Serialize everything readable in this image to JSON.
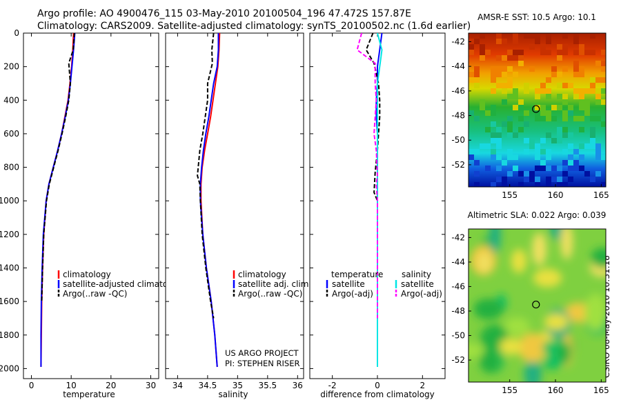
{
  "header": {
    "line1": "Argo profile: AO 4900476_115 03-May-2010 20100504_196 47.472S 157.87E",
    "line2": "Climatology: CARS2009. Satellite-adjusted climatology: synTS_20100502.nc (1.6d earlier)"
  },
  "side_label": "CSIRO 08-May-2010 10:31:18",
  "colors": {
    "climatology": "#ff0000",
    "satellite": "#0000ff",
    "argo": "#000000",
    "sal_satellite": "#00e5e5",
    "sal_argo": "#ff00ff"
  },
  "chart_data": [
    {
      "type": "line",
      "id": "temperature",
      "xlabel": "temperature",
      "ylabel": "",
      "xlim": [
        -2,
        32
      ],
      "ylim": [
        0,
        2060
      ],
      "xticks": [
        "0",
        "10",
        "20",
        "30"
      ],
      "xtick_values": [
        0,
        10,
        20,
        30
      ],
      "yticks": [
        "0",
        "200",
        "400",
        "600",
        "800",
        "1000",
        "1200",
        "1400",
        "1600",
        "1800",
        "2000"
      ],
      "ytick_values": [
        0,
        200,
        400,
        600,
        800,
        1000,
        1200,
        1400,
        1600,
        1800,
        2000
      ],
      "legend": [
        "climatology",
        "satellite-adjusted climatology",
        "Argo(..raw -QC)"
      ],
      "series": [
        {
          "name": "climatology",
          "color": "#ff0000",
          "x": [
            10.6,
            10.4,
            10.1,
            9.7,
            9.2,
            8.4,
            7.6,
            6.6,
            5.5,
            4.4,
            3.7,
            3.1,
            2.8,
            2.6,
            2.5,
            2.4
          ],
          "y": [
            0,
            100,
            200,
            300,
            400,
            500,
            600,
            700,
            800,
            900,
            1000,
            1200,
            1400,
            1600,
            1800,
            1990
          ]
        },
        {
          "name": "satellite-adjusted climatology",
          "color": "#0000ff",
          "x": [
            10.9,
            10.6,
            10.2,
            9.8,
            9.3,
            8.5,
            7.6,
            6.6,
            5.5,
            4.4,
            3.7,
            3.0,
            2.7,
            2.5,
            2.4,
            2.4
          ],
          "y": [
            0,
            100,
            200,
            300,
            400,
            500,
            600,
            700,
            800,
            900,
            1000,
            1200,
            1400,
            1600,
            1800,
            1990
          ]
        },
        {
          "name": "Argo(..raw -QC)",
          "color": "#000000",
          "x": [
            10.8,
            10.5,
            9.4,
            9.8,
            9.4,
            8.6,
            7.7,
            6.7,
            5.6,
            4.5,
            3.8,
            3.1,
            2.8,
            2.6
          ],
          "y": [
            0,
            100,
            180,
            300,
            400,
            500,
            600,
            700,
            800,
            900,
            1000,
            1200,
            1400,
            1600
          ]
        }
      ]
    },
    {
      "type": "line",
      "id": "salinity",
      "xlabel": "salinity",
      "ylabel": "",
      "xlim": [
        33.8,
        36.1
      ],
      "ylim": [
        0,
        2060
      ],
      "xticks": [
        "34",
        "34.5",
        "35",
        "35.5",
        "36"
      ],
      "xtick_values": [
        34,
        34.5,
        35,
        35.5,
        36
      ],
      "legend": [
        "climatology",
        "satellite adj. clim.",
        "Argo(..raw -QC)"
      ],
      "annotation": [
        "US ARGO PROJECT",
        "PI: STEPHEN RISER"
      ],
      "series": [
        {
          "name": "climatology",
          "color": "#ff0000",
          "x": [
            34.7,
            34.69,
            34.67,
            34.63,
            34.59,
            34.55,
            34.5,
            34.45,
            34.41,
            34.39,
            34.39,
            34.42,
            34.48,
            34.56,
            34.62,
            34.66
          ],
          "y": [
            0,
            100,
            200,
            300,
            400,
            500,
            600,
            700,
            800,
            900,
            1000,
            1200,
            1400,
            1600,
            1800,
            1990
          ]
        },
        {
          "name": "satellite adj. clim.",
          "color": "#0000ff",
          "x": [
            34.68,
            34.68,
            34.66,
            34.6,
            34.56,
            34.52,
            34.47,
            34.43,
            34.4,
            34.38,
            34.38,
            34.42,
            34.48,
            34.56,
            34.62,
            34.66
          ],
          "y": [
            0,
            100,
            200,
            300,
            400,
            500,
            600,
            700,
            800,
            900,
            1000,
            1200,
            1400,
            1600,
            1800,
            1990
          ]
        },
        {
          "name": "Argo(..raw -QC)",
          "color": "#000000",
          "x": [
            34.6,
            34.57,
            34.58,
            34.5,
            34.5,
            34.46,
            34.42,
            34.37,
            34.33,
            34.37,
            34.38,
            34.41,
            34.47,
            34.55,
            34.6
          ],
          "y": [
            0,
            100,
            180,
            300,
            400,
            500,
            600,
            700,
            850,
            900,
            1000,
            1200,
            1400,
            1600,
            1700
          ]
        }
      ]
    },
    {
      "type": "line",
      "id": "difference",
      "xlabel": "difference from climatology",
      "ylabel": "",
      "xlim": [
        -3,
        3
      ],
      "ylim": [
        0,
        2060
      ],
      "xticks": [
        "-2",
        "0",
        "2"
      ],
      "xtick_values": [
        -2,
        0,
        2
      ],
      "legend_left_title": "temperature",
      "legend_right_title": "salinity",
      "legend": [
        "satellite",
        "Argo(-adj)",
        "satellite",
        "Argo(-adj)"
      ],
      "series": [
        {
          "name": "temperature satellite",
          "color": "#0000ff",
          "x": [
            0.2,
            0.1,
            0.0,
            0.0,
            -0.05,
            -0.05,
            0.0,
            0.0,
            0.0,
            0.0,
            0.0,
            0.0,
            0.0,
            0.0,
            0.0,
            0.0
          ],
          "y": [
            0,
            100,
            200,
            300,
            400,
            500,
            600,
            700,
            800,
            900,
            1000,
            1200,
            1400,
            1600,
            1800,
            1990
          ]
        },
        {
          "name": "temperature Argo(-adj)",
          "color": "#000000",
          "x": [
            -0.2,
            -0.5,
            -0.15,
            0.05,
            0.1,
            0.1,
            0.05,
            0.0,
            -0.1,
            -0.15,
            0.0,
            0.0,
            0.0,
            0.0
          ],
          "y": [
            0,
            100,
            180,
            300,
            400,
            500,
            600,
            700,
            830,
            950,
            1000,
            1200,
            1400,
            1600
          ]
        },
        {
          "name": "salinity satellite",
          "color": "#00e5e5",
          "x": [
            0.0,
            0.2,
            0.1,
            0.0,
            0.0,
            0.0,
            0.0,
            0.0,
            0.0,
            0.0,
            0.0,
            0.0,
            0.0,
            0.0,
            0.0,
            0.0
          ],
          "y": [
            0,
            100,
            200,
            300,
            400,
            500,
            600,
            700,
            800,
            900,
            1000,
            1200,
            1400,
            1600,
            1800,
            1990
          ]
        },
        {
          "name": "salinity Argo(-adj)",
          "color": "#ff00ff",
          "x": [
            -0.7,
            -0.9,
            -0.1,
            -0.1,
            -0.05,
            -0.1,
            -0.15,
            -0.05,
            0.0,
            -0.05,
            0.0,
            0.0,
            0.0,
            0.0,
            0.0
          ],
          "y": [
            0,
            100,
            180,
            300,
            400,
            500,
            600,
            700,
            850,
            900,
            1000,
            1200,
            1400,
            1600,
            1700
          ]
        }
      ]
    },
    {
      "type": "heatmap",
      "id": "sst_map",
      "title": "AMSR-E SST: 10.5  Argo: 10.1",
      "xlim": [
        150.5,
        165.5
      ],
      "ylim": [
        -53.8,
        -41.3
      ],
      "xticks": [
        "155",
        "160",
        "165"
      ],
      "xtick_values": [
        155,
        160,
        165
      ],
      "yticks": [
        "-42",
        "-44",
        "-46",
        "-48",
        "-50",
        "-52"
      ],
      "ytick_values": [
        -42,
        -44,
        -46,
        -48,
        -50,
        -52
      ],
      "marker": {
        "lon": 157.87,
        "lat": -47.47
      }
    },
    {
      "type": "heatmap",
      "id": "sla_map",
      "title": "Altimetric SLA: 0.022  Argo: 0.039",
      "xlim": [
        150.5,
        165.5
      ],
      "ylim": [
        -53.8,
        -41.3
      ],
      "xticks": [
        "155",
        "160",
        "165"
      ],
      "xtick_values": [
        155,
        160,
        165
      ],
      "yticks": [
        "-42",
        "-44",
        "-46",
        "-48",
        "-50",
        "-52"
      ],
      "ytick_values": [
        -42,
        -44,
        -46,
        -48,
        -50,
        -52
      ],
      "marker": {
        "lon": 157.87,
        "lat": -47.47
      }
    }
  ]
}
